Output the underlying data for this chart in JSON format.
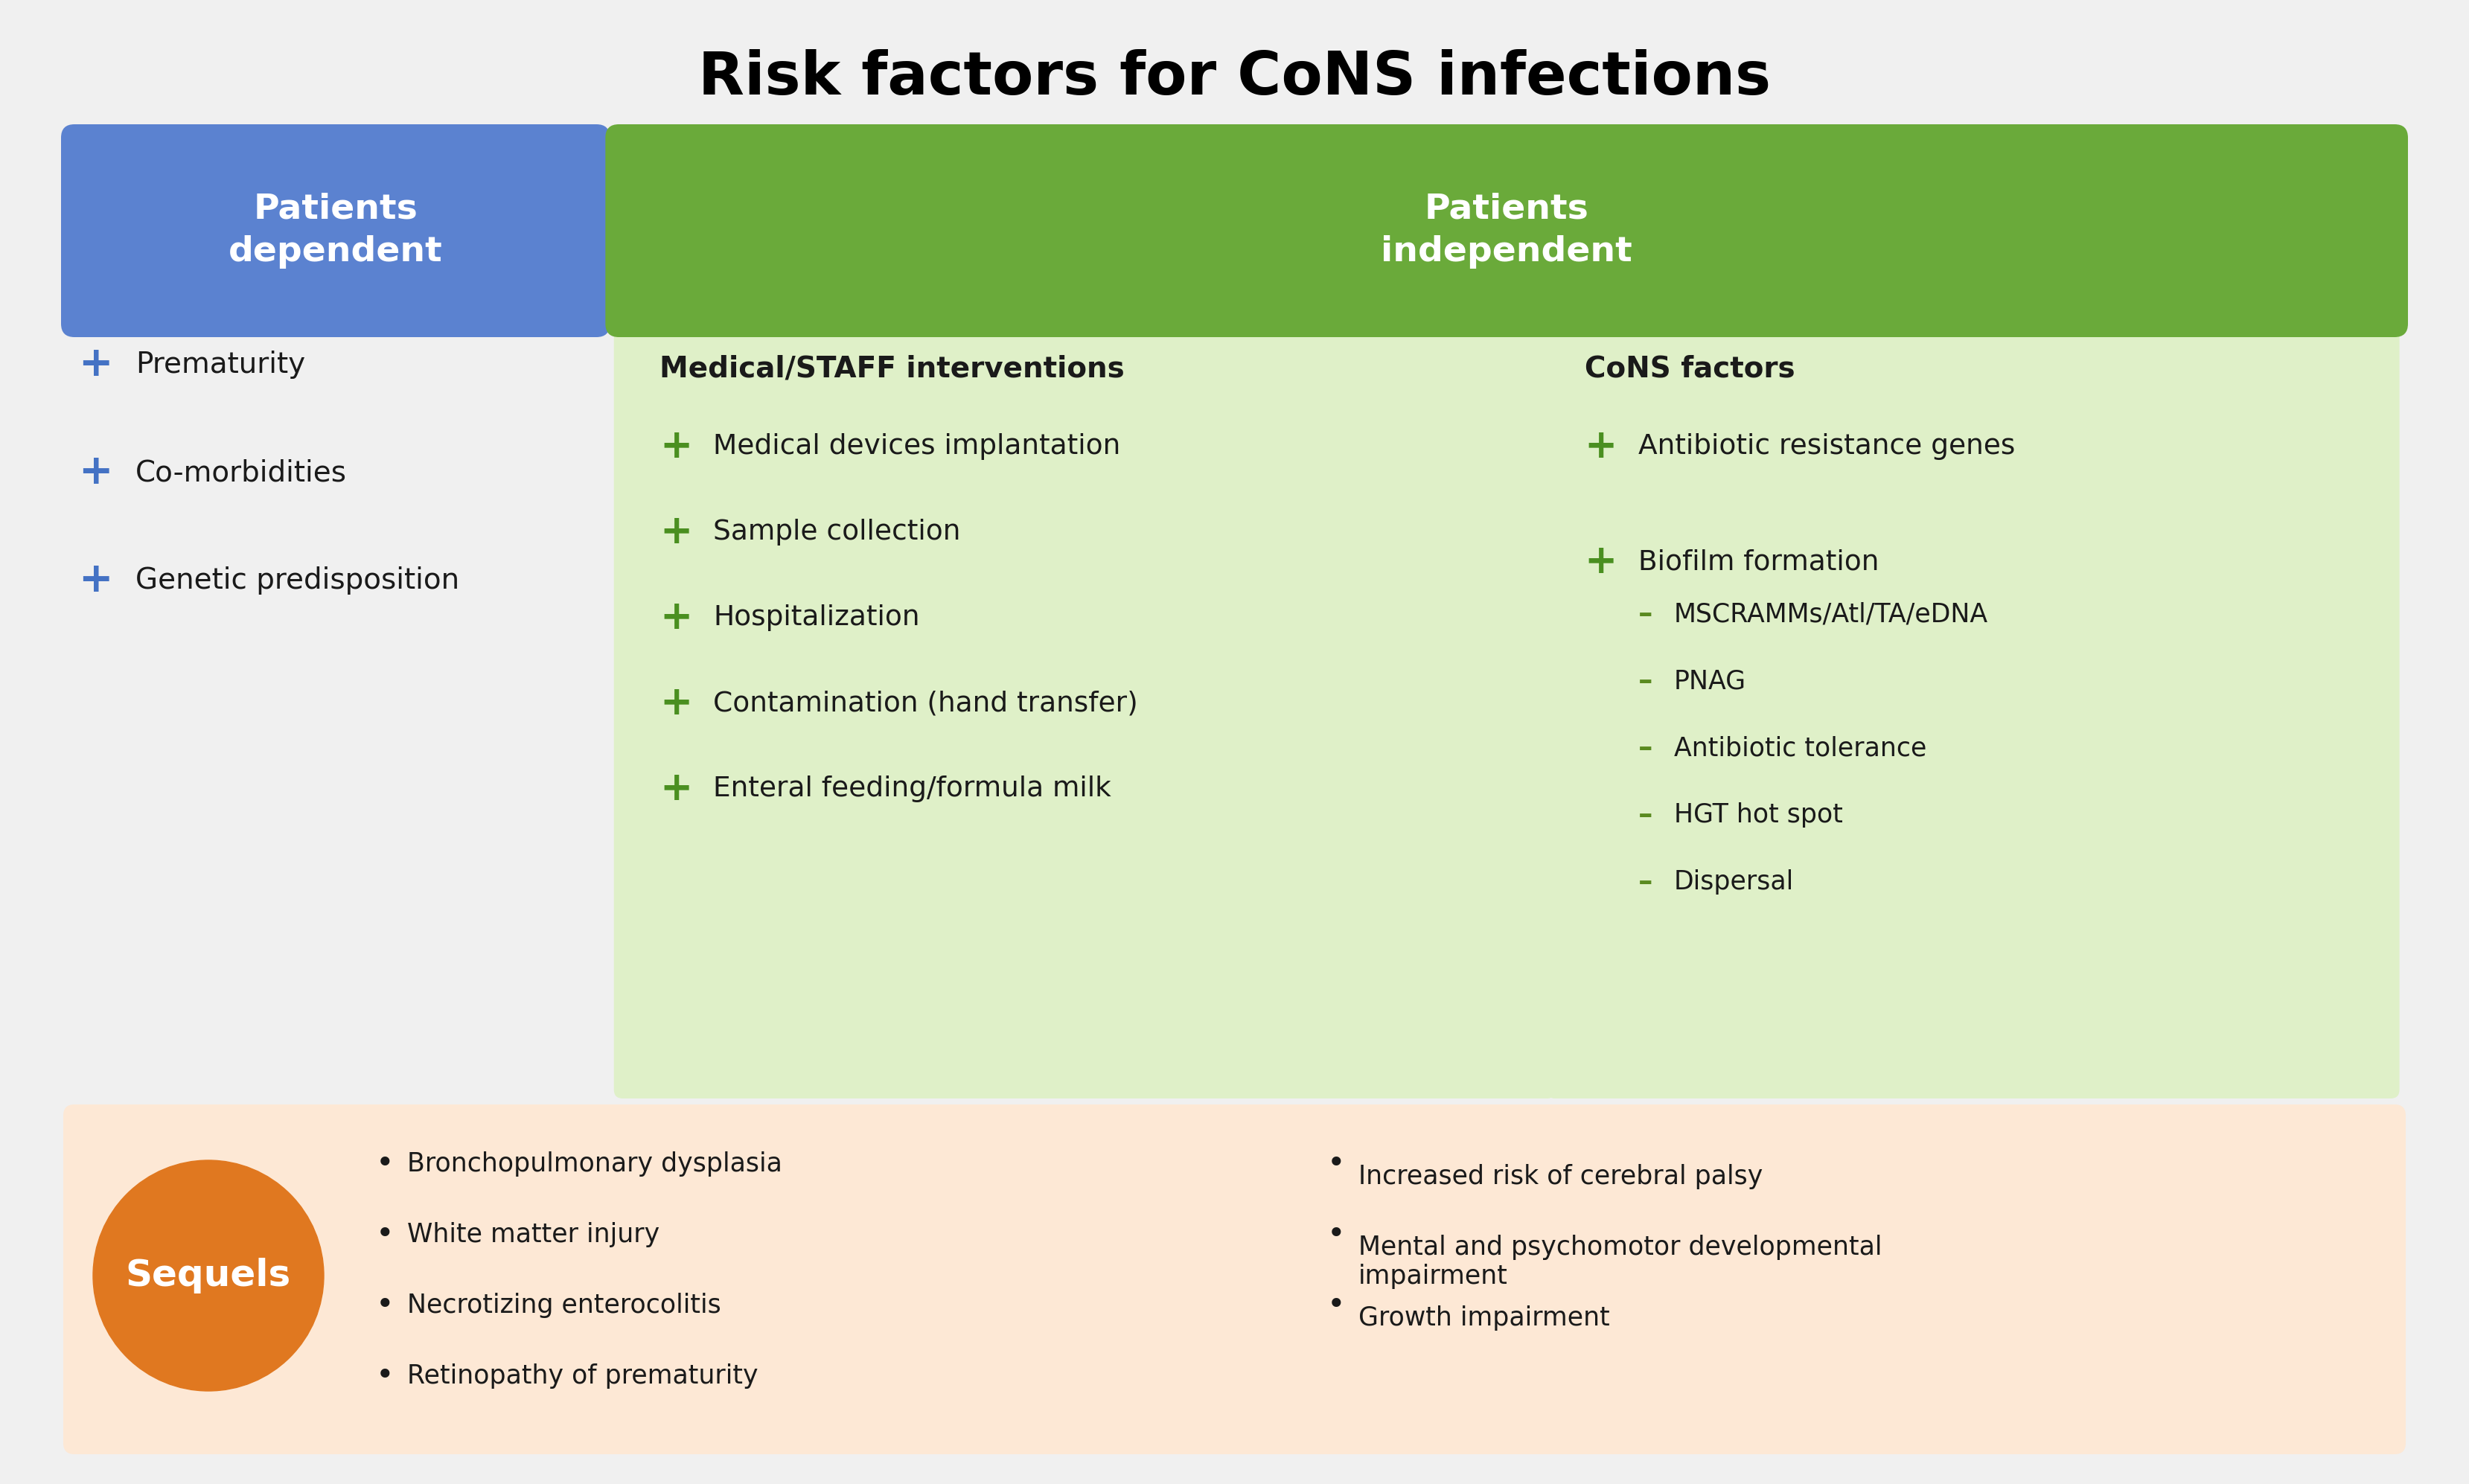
{
  "bg_color": "#f0f0f0",
  "blue_box_color": "#5b82d0",
  "green_box_color": "#6aaa3a",
  "light_green_bg": "#dff0c8",
  "orange_circle_color": "#e07820",
  "orange_bg": "#fde8d5",
  "patients_dependent_label": "Patients\ndependent",
  "patients_independent_label": "Patients\nindependent",
  "dependent_items": [
    "Prematurity",
    "Co-morbidities",
    "Genetic predisposition"
  ],
  "medical_staff_title": "Medical/STAFF interventions",
  "medical_items": [
    "Medical devices implantation",
    "Sample collection",
    "Hospitalization",
    "Contamination (hand transfer)",
    "Enteral feeding/formula milk"
  ],
  "cons_factors_title": "CoNS factors",
  "cons_main_items": [
    "Antibiotic resistance genes",
    "Biofilm formation"
  ],
  "cons_sub_items": [
    "MSCRAMMs/Atl/TA/eDNA",
    "PNAG",
    "Antibiotic tolerance",
    "HGT hot spot",
    "Dispersal"
  ],
  "sequels_label": "Sequels",
  "sequels_col1": [
    "Bronchopulmonary dysplasia",
    "White matter injury",
    "Necrotizing enterocolitis",
    "Retinopathy of prematurity"
  ],
  "sequels_col2": [
    "Increased risk of cerebral palsy",
    "Mental and psychomotor developmental\nimpairment",
    "Growth impairment"
  ],
  "blue_cross_color": "#4472c4",
  "green_cross_color": "#4a8f20",
  "dark_green_dash_color": "#5a8a20",
  "text_color": "#1a1a1a"
}
